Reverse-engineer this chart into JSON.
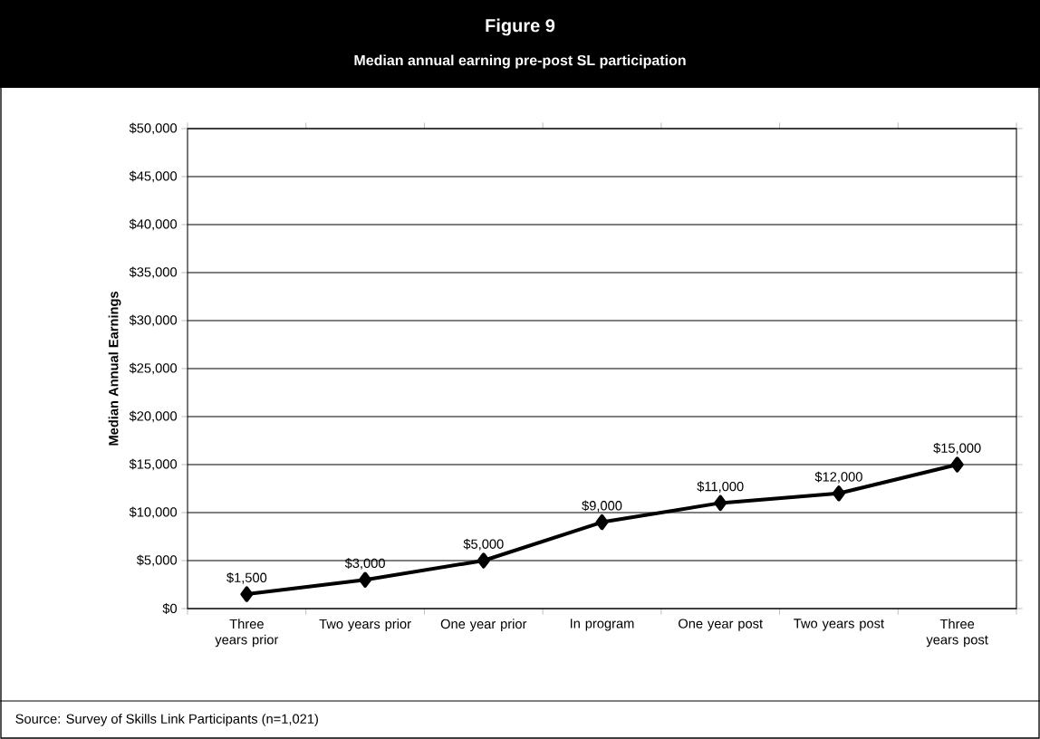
{
  "chart_data": {
    "type": "line",
    "title": "Figure 9",
    "subtitle": "Median annual earning pre-post SL participation",
    "ylabel": "Median Annual Earnings",
    "categories": [
      "Three years prior",
      "Two years prior",
      "One year prior",
      "In program",
      "One year post",
      "Two years post",
      "Three years post"
    ],
    "values": [
      1500,
      3000,
      5000,
      9000,
      11000,
      12000,
      15000
    ],
    "value_labels": [
      "$1,500",
      "$3,000",
      "$5,000",
      "$9,000",
      "$11,000",
      "$12,000",
      "$15,000"
    ],
    "color": "#000000",
    "marker": "diamond",
    "grid": "y",
    "ylim": [
      0,
      50000
    ],
    "yticks": [
      {
        "value": 0,
        "label": "$0"
      },
      {
        "value": 5000,
        "label": "$5,000"
      },
      {
        "value": 10000,
        "label": "$10,000"
      },
      {
        "value": 15000,
        "label": "$15,000"
      },
      {
        "value": 20000,
        "label": "$20,000"
      },
      {
        "value": 25000,
        "label": "$25,000"
      },
      {
        "value": 30000,
        "label": "$30,000"
      },
      {
        "value": 35000,
        "label": "$35,000"
      },
      {
        "value": 40000,
        "label": "$40,000"
      },
      {
        "value": 45000,
        "label": "$45,000"
      },
      {
        "value": 50000,
        "label": "$50,000"
      }
    ],
    "annotations": [
      "Source:  Survey of Skills Link Participants (n=1,021)"
    ]
  }
}
